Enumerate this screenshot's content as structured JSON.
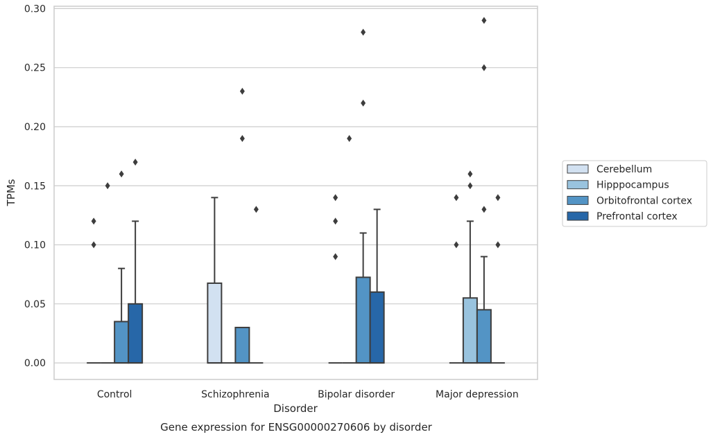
{
  "chart_data": {
    "type": "box",
    "xlabel": "Disorder",
    "ylabel": "TPMs",
    "caption": "Gene expression for ENSG00000270606 by disorder",
    "ylim": [
      -0.014,
      0.302
    ],
    "yticks": [
      "0.00",
      "0.05",
      "0.10",
      "0.15",
      "0.20",
      "0.25",
      "0.30"
    ],
    "grid": "horizontal",
    "legend_placement": "right-center",
    "categories": [
      "Control",
      "Schizophrenia",
      "Bipolar disorder",
      "Major depression"
    ],
    "series": [
      {
        "name": "Cerebellum",
        "color": "#d2e1f1"
      },
      {
        "name": "Hipppocampus",
        "color": "#99c3de"
      },
      {
        "name": "Orbitofrontal cortex",
        "color": "#5394c5"
      },
      {
        "name": "Prefrontal cortex",
        "color": "#2767a8"
      }
    ],
    "boxes": [
      {
        "category": 0,
        "series": 0,
        "q1": 0,
        "median": 0,
        "q3": 0,
        "whisker_low": 0,
        "whisker_high": 0,
        "outliers": [
          0.1,
          0.12
        ]
      },
      {
        "category": 0,
        "series": 1,
        "q1": 0,
        "median": 0,
        "q3": 0,
        "whisker_low": 0,
        "whisker_high": 0,
        "outliers": [
          0.15
        ]
      },
      {
        "category": 0,
        "series": 2,
        "q1": 0,
        "median": 0,
        "q3": 0.035,
        "whisker_low": 0,
        "whisker_high": 0.08,
        "outliers": [
          0.16
        ]
      },
      {
        "category": 0,
        "series": 3,
        "q1": 0,
        "median": 0,
        "q3": 0.05,
        "whisker_low": 0,
        "whisker_high": 0.12,
        "outliers": [
          0.17
        ]
      },
      {
        "category": 1,
        "series": 0,
        "q1": 0,
        "median": 0,
        "q3": 0.0675,
        "whisker_low": 0,
        "whisker_high": 0.14,
        "outliers": []
      },
      {
        "category": 1,
        "series": 1,
        "q1": 0,
        "median": 0,
        "q3": 0,
        "whisker_low": 0,
        "whisker_high": 0,
        "outliers": []
      },
      {
        "category": 1,
        "series": 2,
        "q1": 0,
        "median": 0,
        "q3": 0.03,
        "whisker_low": 0,
        "whisker_high": 0.03,
        "outliers": [
          0.19,
          0.23
        ]
      },
      {
        "category": 1,
        "series": 3,
        "q1": 0,
        "median": 0,
        "q3": 0,
        "whisker_low": 0,
        "whisker_high": 0,
        "outliers": [
          0.13
        ]
      },
      {
        "category": 2,
        "series": 0,
        "q1": 0,
        "median": 0,
        "q3": 0,
        "whisker_low": 0,
        "whisker_high": 0,
        "outliers": [
          0.09,
          0.12,
          0.14
        ]
      },
      {
        "category": 2,
        "series": 1,
        "q1": 0,
        "median": 0,
        "q3": 0,
        "whisker_low": 0,
        "whisker_high": 0,
        "outliers": [
          0.19
        ]
      },
      {
        "category": 2,
        "series": 2,
        "q1": 0,
        "median": 0,
        "q3": 0.0725,
        "whisker_low": 0,
        "whisker_high": 0.11,
        "outliers": [
          0.22,
          0.28
        ]
      },
      {
        "category": 2,
        "series": 3,
        "q1": 0,
        "median": 0,
        "q3": 0.06,
        "whisker_low": 0,
        "whisker_high": 0.13,
        "outliers": []
      },
      {
        "category": 3,
        "series": 0,
        "q1": 0,
        "median": 0,
        "q3": 0,
        "whisker_low": 0,
        "whisker_high": 0,
        "outliers": [
          0.1,
          0.14
        ]
      },
      {
        "category": 3,
        "series": 1,
        "q1": 0,
        "median": 0,
        "q3": 0.055,
        "whisker_low": 0,
        "whisker_high": 0.12,
        "outliers": [
          0.15,
          0.16
        ]
      },
      {
        "category": 3,
        "series": 2,
        "q1": 0,
        "median": 0,
        "q3": 0.045,
        "whisker_low": 0,
        "whisker_high": 0.09,
        "outliers": [
          0.13,
          0.25,
          0.29
        ]
      },
      {
        "category": 3,
        "series": 3,
        "q1": 0,
        "median": 0,
        "q3": 0,
        "whisker_low": 0,
        "whisker_high": 0,
        "outliers": [
          0.1,
          0.14
        ]
      }
    ]
  }
}
